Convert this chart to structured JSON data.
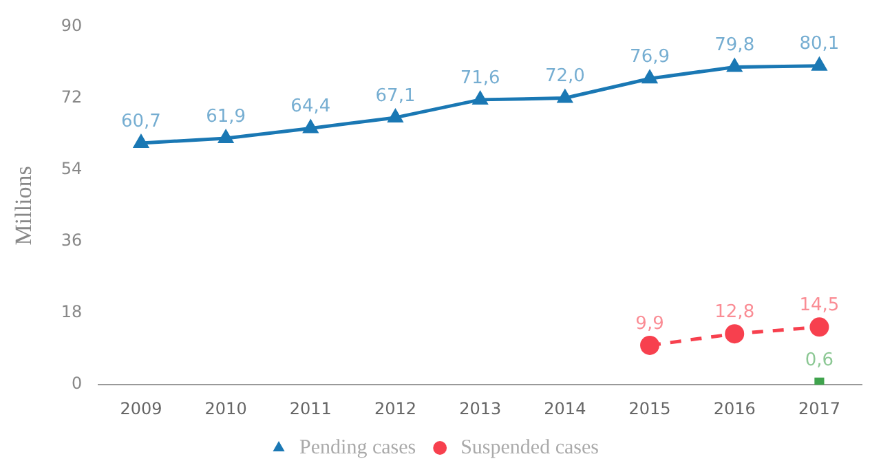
{
  "chart_data": {
    "type": "line",
    "ylabel": "Millions",
    "categories": [
      "2009",
      "2010",
      "2011",
      "2012",
      "2013",
      "2014",
      "2015",
      "2016",
      "2017"
    ],
    "series": [
      {
        "name": "Pending cases",
        "color": "#1a78b4",
        "marker": "triangle",
        "line_style": "solid",
        "values": [
          60.7,
          61.9,
          64.4,
          67.1,
          71.6,
          72.0,
          76.9,
          79.8,
          80.1
        ],
        "value_labels": [
          "60,7",
          "61,9",
          "64,4",
          "67,1",
          "71,6",
          "72,0",
          "76,9",
          "79,8",
          "80,1"
        ]
      },
      {
        "name": "Suspended cases",
        "color": "#f7404e",
        "marker": "circle",
        "line_style": "dashed",
        "values": [
          null,
          null,
          null,
          null,
          null,
          null,
          9.9,
          12.8,
          14.5
        ],
        "value_labels": [
          null,
          null,
          null,
          null,
          null,
          null,
          "9,9",
          "12,8",
          "14,5"
        ]
      },
      {
        "type": "scatter",
        "color": "#3fa34d",
        "marker": "square",
        "values": [
          null,
          null,
          null,
          null,
          null,
          null,
          null,
          null,
          0.6
        ],
        "value_labels": [
          null,
          null,
          null,
          null,
          null,
          null,
          null,
          null,
          "0,6"
        ]
      }
    ],
    "ylim": [
      0,
      90
    ],
    "yticks": [
      0,
      18,
      36,
      54,
      72,
      90
    ],
    "grid": false,
    "legend": "bottom"
  }
}
